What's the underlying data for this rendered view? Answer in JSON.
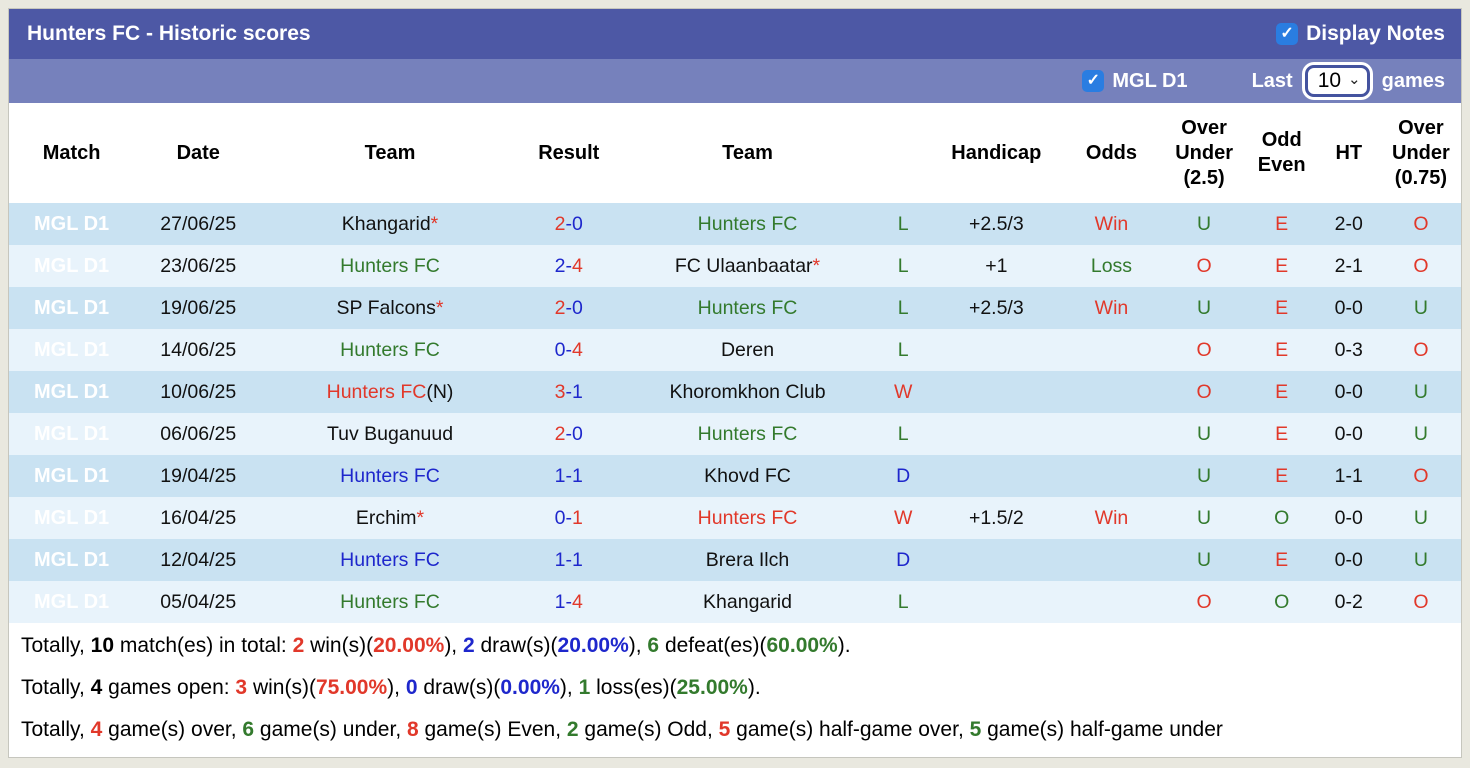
{
  "panel": {
    "title": "Hunters FC - Historic scores",
    "display_notes_label": "Display Notes",
    "league_filter_label": "MGL D1",
    "last_label": "Last",
    "games_label": "games",
    "games_count": "10"
  },
  "colors": {
    "accent_dark": "#4d58a5",
    "accent_light": "#7681bc",
    "badge_red": "#d25460",
    "checkbox_blue": "#2a7de1",
    "win_red": "#e1382a",
    "draw_blue": "#1e27cc",
    "loss_green": "#337a2d"
  },
  "table": {
    "headers": [
      "Match",
      "Date",
      "Team",
      "Result",
      "Team",
      "",
      "Handicap",
      "Odds",
      "Over Under (2.5)",
      "Odd Even",
      "HT",
      "Over Under (0.75)"
    ],
    "rows": [
      {
        "league": "MGL D1",
        "date": "27/06/25",
        "home": {
          "text": "Khangarid",
          "color": "black",
          "star": true,
          "suffix": ""
        },
        "score": {
          "home": "2",
          "home_color": "red",
          "away": "0",
          "away_color": "blue"
        },
        "away": {
          "text": "Hunters FC",
          "color": "green",
          "star": false,
          "suffix": ""
        },
        "wdl": {
          "text": "L",
          "color": "green"
        },
        "handicap": "+2.5/3",
        "odds": {
          "text": "Win",
          "color": "red"
        },
        "ou25": {
          "text": "U",
          "color": "green"
        },
        "odd_even": {
          "text": "E",
          "color": "red"
        },
        "ht": "2-0",
        "ou075": {
          "text": "O",
          "color": "red"
        }
      },
      {
        "league": "MGL D1",
        "date": "23/06/25",
        "home": {
          "text": "Hunters FC",
          "color": "green",
          "star": false,
          "suffix": ""
        },
        "score": {
          "home": "2",
          "home_color": "blue",
          "away": "4",
          "away_color": "red"
        },
        "away": {
          "text": "FC Ulaanbaatar",
          "color": "black",
          "star": true,
          "suffix": ""
        },
        "wdl": {
          "text": "L",
          "color": "green"
        },
        "handicap": "+1",
        "odds": {
          "text": "Loss",
          "color": "green"
        },
        "ou25": {
          "text": "O",
          "color": "red"
        },
        "odd_even": {
          "text": "E",
          "color": "red"
        },
        "ht": "2-1",
        "ou075": {
          "text": "O",
          "color": "red"
        }
      },
      {
        "league": "MGL D1",
        "date": "19/06/25",
        "home": {
          "text": "SP Falcons",
          "color": "black",
          "star": true,
          "suffix": ""
        },
        "score": {
          "home": "2",
          "home_color": "red",
          "away": "0",
          "away_color": "blue"
        },
        "away": {
          "text": "Hunters FC",
          "color": "green",
          "star": false,
          "suffix": ""
        },
        "wdl": {
          "text": "L",
          "color": "green"
        },
        "handicap": "+2.5/3",
        "odds": {
          "text": "Win",
          "color": "red"
        },
        "ou25": {
          "text": "U",
          "color": "green"
        },
        "odd_even": {
          "text": "E",
          "color": "red"
        },
        "ht": "0-0",
        "ou075": {
          "text": "U",
          "color": "green"
        }
      },
      {
        "league": "MGL D1",
        "date": "14/06/25",
        "home": {
          "text": "Hunters FC",
          "color": "green",
          "star": false,
          "suffix": ""
        },
        "score": {
          "home": "0",
          "home_color": "blue",
          "away": "4",
          "away_color": "red"
        },
        "away": {
          "text": "Deren",
          "color": "black",
          "star": false,
          "suffix": ""
        },
        "wdl": {
          "text": "L",
          "color": "green"
        },
        "handicap": "",
        "odds": {
          "text": "",
          "color": "black"
        },
        "ou25": {
          "text": "O",
          "color": "red"
        },
        "odd_even": {
          "text": "E",
          "color": "red"
        },
        "ht": "0-3",
        "ou075": {
          "text": "O",
          "color": "red"
        }
      },
      {
        "league": "MGL D1",
        "date": "10/06/25",
        "home": {
          "text": "Hunters FC",
          "color": "red",
          "star": false,
          "suffix": "(N)"
        },
        "score": {
          "home": "3",
          "home_color": "red",
          "away": "1",
          "away_color": "blue"
        },
        "away": {
          "text": "Khoromkhon Club",
          "color": "black",
          "star": false,
          "suffix": ""
        },
        "wdl": {
          "text": "W",
          "color": "red"
        },
        "handicap": "",
        "odds": {
          "text": "",
          "color": "black"
        },
        "ou25": {
          "text": "O",
          "color": "red"
        },
        "odd_even": {
          "text": "E",
          "color": "red"
        },
        "ht": "0-0",
        "ou075": {
          "text": "U",
          "color": "green"
        }
      },
      {
        "league": "MGL D1",
        "date": "06/06/25",
        "home": {
          "text": "Tuv Buganuud",
          "color": "black",
          "star": false,
          "suffix": ""
        },
        "score": {
          "home": "2",
          "home_color": "red",
          "away": "0",
          "away_color": "blue"
        },
        "away": {
          "text": "Hunters FC",
          "color": "green",
          "star": false,
          "suffix": ""
        },
        "wdl": {
          "text": "L",
          "color": "green"
        },
        "handicap": "",
        "odds": {
          "text": "",
          "color": "black"
        },
        "ou25": {
          "text": "U",
          "color": "green"
        },
        "odd_even": {
          "text": "E",
          "color": "red"
        },
        "ht": "0-0",
        "ou075": {
          "text": "U",
          "color": "green"
        }
      },
      {
        "league": "MGL D1",
        "date": "19/04/25",
        "home": {
          "text": "Hunters FC",
          "color": "blue",
          "star": false,
          "suffix": ""
        },
        "score": {
          "home": "1",
          "home_color": "blue",
          "away": "1",
          "away_color": "blue"
        },
        "away": {
          "text": "Khovd FC",
          "color": "black",
          "star": false,
          "suffix": ""
        },
        "wdl": {
          "text": "D",
          "color": "blue"
        },
        "handicap": "",
        "odds": {
          "text": "",
          "color": "black"
        },
        "ou25": {
          "text": "U",
          "color": "green"
        },
        "odd_even": {
          "text": "E",
          "color": "red"
        },
        "ht": "1-1",
        "ou075": {
          "text": "O",
          "color": "red"
        }
      },
      {
        "league": "MGL D1",
        "date": "16/04/25",
        "home": {
          "text": "Erchim",
          "color": "black",
          "star": true,
          "suffix": ""
        },
        "score": {
          "home": "0",
          "home_color": "blue",
          "away": "1",
          "away_color": "red"
        },
        "away": {
          "text": "Hunters FC",
          "color": "red",
          "star": false,
          "suffix": ""
        },
        "wdl": {
          "text": "W",
          "color": "red"
        },
        "handicap": "+1.5/2",
        "odds": {
          "text": "Win",
          "color": "red"
        },
        "ou25": {
          "text": "U",
          "color": "green"
        },
        "odd_even": {
          "text": "O",
          "color": "green"
        },
        "ht": "0-0",
        "ou075": {
          "text": "U",
          "color": "green"
        }
      },
      {
        "league": "MGL D1",
        "date": "12/04/25",
        "home": {
          "text": "Hunters FC",
          "color": "blue",
          "star": false,
          "suffix": ""
        },
        "score": {
          "home": "1",
          "home_color": "blue",
          "away": "1",
          "away_color": "blue"
        },
        "away": {
          "text": "Brera Ilch",
          "color": "black",
          "star": false,
          "suffix": ""
        },
        "wdl": {
          "text": "D",
          "color": "blue"
        },
        "handicap": "",
        "odds": {
          "text": "",
          "color": "black"
        },
        "ou25": {
          "text": "U",
          "color": "green"
        },
        "odd_even": {
          "text": "E",
          "color": "red"
        },
        "ht": "0-0",
        "ou075": {
          "text": "U",
          "color": "green"
        }
      },
      {
        "league": "MGL D1",
        "date": "05/04/25",
        "home": {
          "text": "Hunters FC",
          "color": "green",
          "star": false,
          "suffix": ""
        },
        "score": {
          "home": "1",
          "home_color": "blue",
          "away": "4",
          "away_color": "red"
        },
        "away": {
          "text": "Khangarid",
          "color": "black",
          "star": false,
          "suffix": ""
        },
        "wdl": {
          "text": "L",
          "color": "green"
        },
        "handicap": "",
        "odds": {
          "text": "",
          "color": "black"
        },
        "ou25": {
          "text": "O",
          "color": "red"
        },
        "odd_even": {
          "text": "O",
          "color": "green"
        },
        "ht": "0-2",
        "ou075": {
          "text": "O",
          "color": "red"
        }
      }
    ]
  },
  "summary": {
    "lines": [
      [
        {
          "t": "Totally, "
        },
        {
          "t": "10",
          "b": 1
        },
        {
          "t": " match(es) in total: "
        },
        {
          "t": "2",
          "b": 1,
          "c": "red"
        },
        {
          "t": " win(s)("
        },
        {
          "t": "20.00%",
          "b": 1,
          "c": "red"
        },
        {
          "t": "), "
        },
        {
          "t": "2",
          "b": 1,
          "c": "blue"
        },
        {
          "t": " draw(s)("
        },
        {
          "t": "20.00%",
          "b": 1,
          "c": "blue"
        },
        {
          "t": "), "
        },
        {
          "t": "6",
          "b": 1,
          "c": "green"
        },
        {
          "t": " defeat(es)("
        },
        {
          "t": "60.00%",
          "b": 1,
          "c": "green"
        },
        {
          "t": ")."
        }
      ],
      [
        {
          "t": "Totally, "
        },
        {
          "t": "4",
          "b": 1
        },
        {
          "t": " games open: "
        },
        {
          "t": "3",
          "b": 1,
          "c": "red"
        },
        {
          "t": " win(s)("
        },
        {
          "t": "75.00%",
          "b": 1,
          "c": "red"
        },
        {
          "t": "), "
        },
        {
          "t": "0",
          "b": 1,
          "c": "blue"
        },
        {
          "t": " draw(s)("
        },
        {
          "t": "0.00%",
          "b": 1,
          "c": "blue"
        },
        {
          "t": "), "
        },
        {
          "t": "1",
          "b": 1,
          "c": "green"
        },
        {
          "t": " loss(es)("
        },
        {
          "t": "25.00%",
          "b": 1,
          "c": "green"
        },
        {
          "t": ")."
        }
      ],
      [
        {
          "t": "Totally, "
        },
        {
          "t": "4",
          "b": 1,
          "c": "red"
        },
        {
          "t": " game(s) over, "
        },
        {
          "t": "6",
          "b": 1,
          "c": "green"
        },
        {
          "t": " game(s) under, "
        },
        {
          "t": "8",
          "b": 1,
          "c": "red"
        },
        {
          "t": " game(s) Even, "
        },
        {
          "t": "2",
          "b": 1,
          "c": "green"
        },
        {
          "t": " game(s) Odd, "
        },
        {
          "t": "5",
          "b": 1,
          "c": "red"
        },
        {
          "t": " game(s) half-game over, "
        },
        {
          "t": "5",
          "b": 1,
          "c": "green"
        },
        {
          "t": " game(s) half-game under"
        }
      ]
    ]
  }
}
